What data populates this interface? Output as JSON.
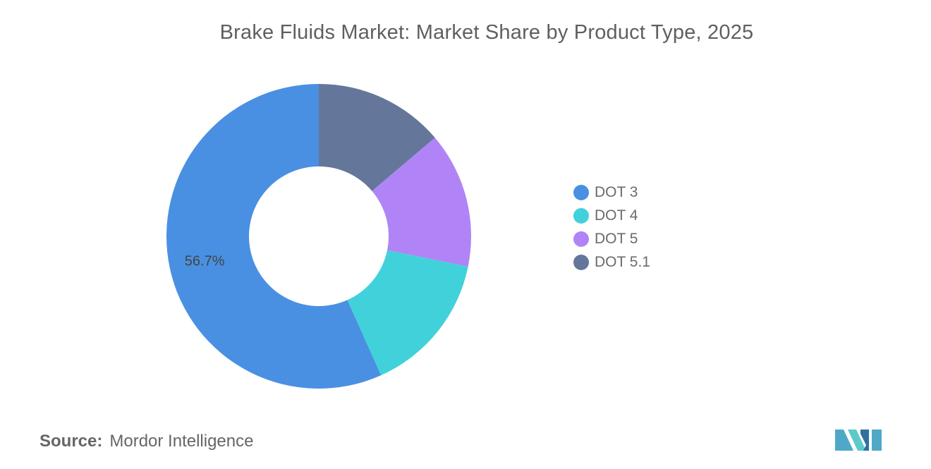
{
  "chart_data": {
    "type": "pie",
    "title": "Brake Fluids Market: Market Share by Product Type, 2025",
    "categories": [
      "DOT 3",
      "DOT 4",
      "DOT 5",
      "DOT 5.1"
    ],
    "values": [
      56.7,
      15.1,
      14.4,
      13.8
    ],
    "unit": "%",
    "data_labels": [
      "56.7%",
      "",
      "",
      ""
    ],
    "colors": [
      "#4a90e2",
      "#41d1db",
      "#b084f7",
      "#64779a"
    ],
    "legend_position": "right",
    "donut": true
  },
  "source": {
    "label": "Source:",
    "value": "Mordor Intelligence"
  },
  "logo": {
    "icon": "mordor-intelligence-logo-icon",
    "colors": [
      "#4fa8c8",
      "#5ec9c9",
      "#2f6fa1"
    ]
  }
}
